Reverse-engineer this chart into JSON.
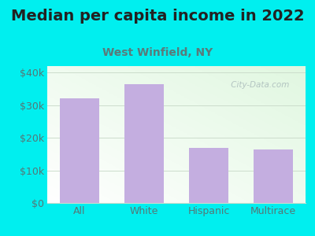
{
  "title": "Median per capita income in 2022",
  "subtitle": "West Winfield, NY",
  "categories": [
    "All",
    "White",
    "Hispanic",
    "Multirace"
  ],
  "values": [
    32000,
    36500,
    17000,
    16500
  ],
  "bar_color": "#c4aee0",
  "ylim": [
    0,
    42000
  ],
  "yticks": [
    0,
    10000,
    20000,
    30000,
    40000
  ],
  "ytick_labels": [
    "$0",
    "$10k",
    "$20k",
    "$30k",
    "$40k"
  ],
  "background_outer": "#00efef",
  "title_fontsize": 14,
  "subtitle_fontsize": 10,
  "subtitle_color": "#5a7a7a",
  "title_color": "#222222",
  "watermark_text": " City-Data.com",
  "watermark_color": "#aabbbb",
  "grid_color": "#ccddcc",
  "tick_color": "#557777",
  "ax_label_color": "#557777"
}
